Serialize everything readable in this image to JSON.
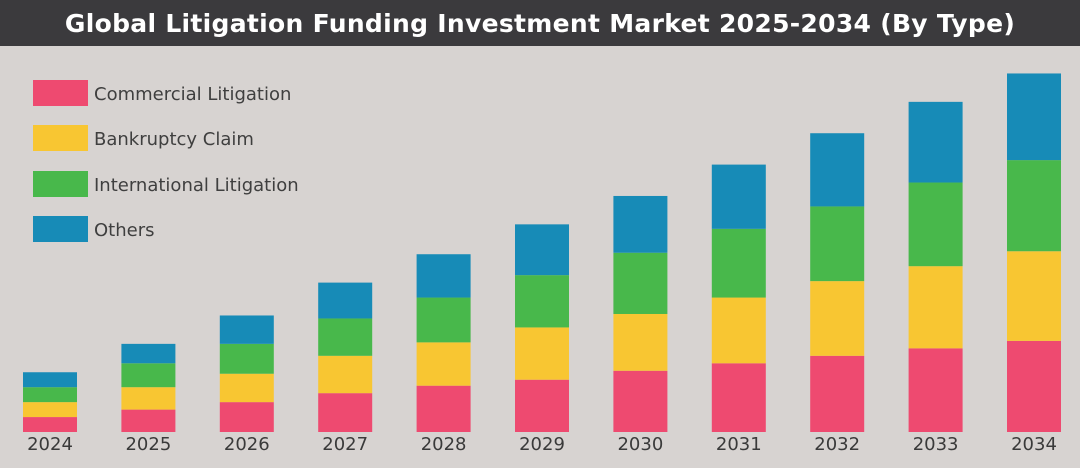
{
  "title": "Global Litigation Funding Investment Market 2025-2034 (By Type)",
  "chart_data": {
    "type": "bar",
    "stacked": true,
    "categories": [
      "2024",
      "2025",
      "2026",
      "2027",
      "2028",
      "2029",
      "2030",
      "2031",
      "2032",
      "2033",
      "2034"
    ],
    "series": [
      {
        "name": "Commercial Litigation",
        "color": "#ee4a70",
        "values": [
          1.0,
          1.5,
          2.0,
          2.6,
          3.1,
          3.5,
          4.1,
          4.6,
          5.1,
          5.6,
          6.1
        ]
      },
      {
        "name": "Bankruptcy Claim",
        "color": "#f8c632",
        "values": [
          1.0,
          1.5,
          1.9,
          2.5,
          2.9,
          3.5,
          3.8,
          4.4,
          5.0,
          5.5,
          6.0
        ]
      },
      {
        "name": "International Litigation",
        "color": "#48b84b",
        "values": [
          1.0,
          1.6,
          2.0,
          2.5,
          3.0,
          3.5,
          4.1,
          4.6,
          5.0,
          5.6,
          6.1
        ]
      },
      {
        "name": "Others",
        "color": "#178bb7",
        "values": [
          1.0,
          1.3,
          1.9,
          2.4,
          2.9,
          3.4,
          3.8,
          4.3,
          4.9,
          5.4,
          5.8
        ]
      }
    ],
    "legend_position": "top-left",
    "grid": false,
    "ylim": [
      0,
      24.5
    ]
  }
}
